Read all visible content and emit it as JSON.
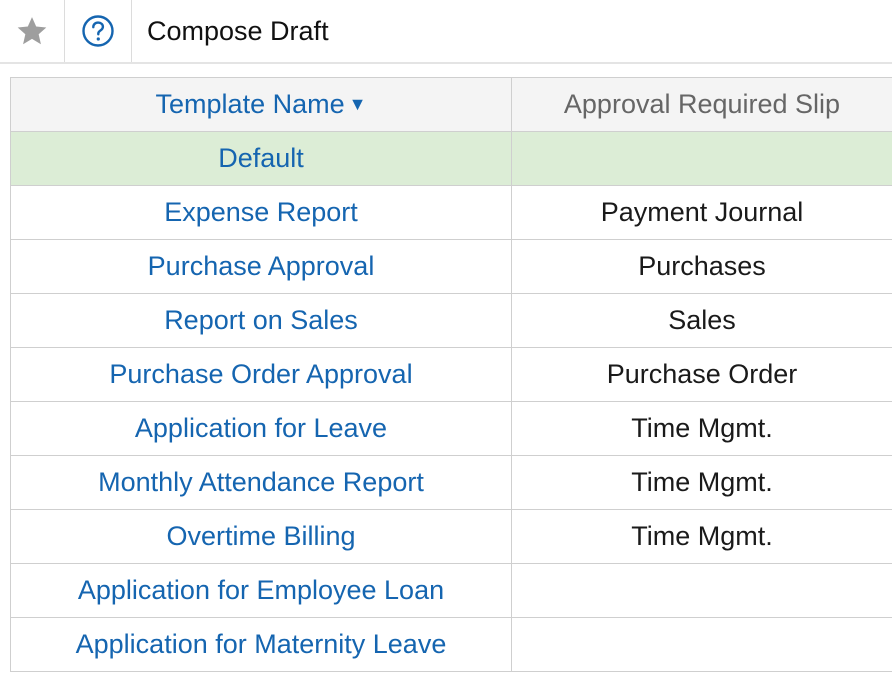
{
  "header": {
    "title": "Compose Draft",
    "star_icon": "star-icon",
    "help_icon": "question-circle-icon"
  },
  "grid": {
    "columns": [
      {
        "label": "Template Name",
        "sort": "descending",
        "sort_icon": "caret-down-icon"
      },
      {
        "label": "Approval Required Slip"
      }
    ],
    "rows": [
      {
        "name": "Default",
        "slip": "",
        "selected": true
      },
      {
        "name": "Expense Report",
        "slip": "Payment Journal"
      },
      {
        "name": "Purchase Approval",
        "slip": "Purchases"
      },
      {
        "name": "Report on Sales",
        "slip": "Sales"
      },
      {
        "name": "Purchase Order Approval",
        "slip": "Purchase Order"
      },
      {
        "name": "Application for Leave",
        "slip": "Time Mgmt."
      },
      {
        "name": "Monthly Attendance Report",
        "slip": "Time Mgmt."
      },
      {
        "name": "Overtime Billing",
        "slip": "Time Mgmt."
      },
      {
        "name": "Application for Employee  Loan",
        "slip": ""
      },
      {
        "name": "Application for Maternity Leave",
        "slip": ""
      }
    ]
  },
  "colors": {
    "link": "#1565b0",
    "selected_row": "#dcedd6",
    "header_bg": "#f4f4f4",
    "border": "#cfcfcf",
    "star": "#9e9e9e"
  }
}
